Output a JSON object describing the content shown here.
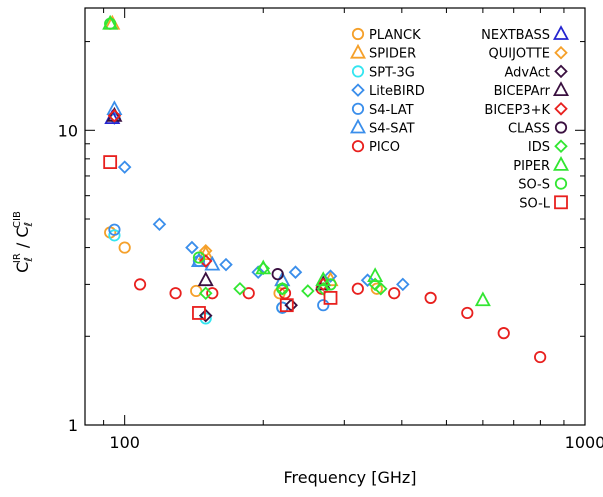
{
  "chart_data": {
    "type": "scatter",
    "xlabel": "Frequency [GHz]",
    "ylabel_parts": {
      "c1": "C",
      "sub1": "ℓ",
      "sup1": "IR",
      "slash": " / ",
      "c2": "C",
      "sub2": "ℓ",
      "sup2": "CIB"
    },
    "x_scale": "log",
    "y_scale": "log",
    "xlim": [
      82,
      1000
    ],
    "ylim": [
      1,
      26
    ],
    "x_ticks": [
      {
        "value": 100,
        "label": "100"
      },
      {
        "value": 1000,
        "label": "1000"
      }
    ],
    "y_ticks": [
      {
        "value": 1,
        "label": "1"
      },
      {
        "value": 10,
        "label": "10"
      }
    ],
    "legend_placement": "top-right",
    "series": [
      {
        "name": "PLANCK",
        "marker": "circle",
        "color": "#F5A02A",
        "points": [
          [
            93,
            4.5
          ],
          [
            100,
            4.0
          ],
          [
            143,
            2.85
          ],
          [
            217,
            2.8
          ],
          [
            353,
            2.9
          ]
        ]
      },
      {
        "name": "SPIDER",
        "marker": "triangle",
        "color": "#F5A02A",
        "points": [
          [
            94,
            23.0
          ],
          [
            150,
            3.8
          ],
          [
            220,
            3.1
          ],
          [
            280,
            3.1
          ]
        ]
      },
      {
        "name": "SPT-3G",
        "marker": "circle",
        "color": "#34E5F0",
        "points": [
          [
            95,
            4.4
          ],
          [
            150,
            2.3
          ],
          [
            220,
            2.5
          ]
        ]
      },
      {
        "name": "LiteBIRD",
        "marker": "diamond",
        "color": "#3A8EEB",
        "points": [
          [
            95,
            11.0
          ],
          [
            100,
            7.5
          ],
          [
            119,
            4.8
          ],
          [
            140,
            4.0
          ],
          [
            166,
            3.5
          ],
          [
            195,
            3.3
          ],
          [
            235,
            3.3
          ],
          [
            280,
            3.2
          ],
          [
            337,
            3.1
          ],
          [
            402,
            3.0
          ]
        ]
      },
      {
        "name": "S4-LAT",
        "marker": "circle",
        "color": "#3A8EEB",
        "points": [
          [
            95,
            4.6
          ],
          [
            145,
            3.6
          ],
          [
            220,
            2.5
          ],
          [
            270,
            2.55
          ]
        ]
      },
      {
        "name": "S4-SAT",
        "marker": "triangle",
        "color": "#3A8EEB",
        "points": [
          [
            95,
            11.8
          ],
          [
            145,
            3.6
          ],
          [
            155,
            3.5
          ],
          [
            220,
            3.1
          ],
          [
            270,
            3.0
          ]
        ]
      },
      {
        "name": "PICO",
        "marker": "circle",
        "color": "#E8201E",
        "points": [
          [
            108,
            3.0
          ],
          [
            129,
            2.8
          ],
          [
            155,
            2.8
          ],
          [
            186,
            2.8
          ],
          [
            223,
            2.8
          ],
          [
            268,
            2.9
          ],
          [
            321,
            2.9
          ],
          [
            385,
            2.8
          ],
          [
            462,
            2.7
          ],
          [
            555,
            2.4
          ],
          [
            666,
            2.05
          ],
          [
            799,
            1.7
          ]
        ]
      },
      {
        "name": "NEXTBASS",
        "marker": "triangle",
        "color": "#2525D0",
        "points": [
          [
            94,
            11.0
          ]
        ]
      },
      {
        "name": "QUIJOTTE",
        "marker": "diamond",
        "color": "#F5A02A",
        "points": [
          [
            150,
            3.9
          ]
        ]
      },
      {
        "name": "AdvAct",
        "marker": "diamond",
        "color": "#3A1040",
        "points": [
          [
            150,
            2.35
          ],
          [
            230,
            2.55
          ]
        ]
      },
      {
        "name": "BICEPArr",
        "marker": "triangle",
        "color": "#3A1040",
        "points": [
          [
            95,
            11.2
          ],
          [
            150,
            3.1
          ],
          [
            270,
            3.0
          ]
        ]
      },
      {
        "name": "BICEP3+K",
        "marker": "diamond",
        "color": "#E8201E",
        "points": [
          [
            95,
            11.2
          ],
          [
            150,
            3.6
          ],
          [
            270,
            3.0
          ]
        ]
      },
      {
        "name": "CLASS",
        "marker": "circle",
        "color": "#3A1040",
        "points": [
          [
            215,
            3.25
          ]
        ]
      },
      {
        "name": "IDS",
        "marker": "diamond",
        "color": "#32E632",
        "points": [
          [
            150,
            2.8
          ],
          [
            178,
            2.9
          ],
          [
            200,
            3.4
          ],
          [
            220,
            2.9
          ],
          [
            250,
            2.85
          ],
          [
            270,
            2.9
          ],
          [
            350,
            3.0
          ],
          [
            360,
            2.9
          ]
        ]
      },
      {
        "name": "PIPER",
        "marker": "triangle",
        "color": "#32E632",
        "points": [
          [
            93,
            23.0
          ],
          [
            200,
            3.4
          ],
          [
            270,
            3.1
          ],
          [
            350,
            3.2
          ],
          [
            600,
            2.65
          ]
        ]
      },
      {
        "name": "SO-S",
        "marker": "circle",
        "color": "#32E632",
        "points": [
          [
            93,
            23.0
          ],
          [
            145,
            3.7
          ],
          [
            220,
            2.9
          ],
          [
            280,
            3.0
          ]
        ]
      },
      {
        "name": "SO-L",
        "marker": "square",
        "color": "#E8201E",
        "points": [
          [
            93,
            7.8
          ],
          [
            145,
            2.4
          ],
          [
            225,
            2.55
          ],
          [
            280,
            2.7
          ]
        ]
      }
    ]
  }
}
